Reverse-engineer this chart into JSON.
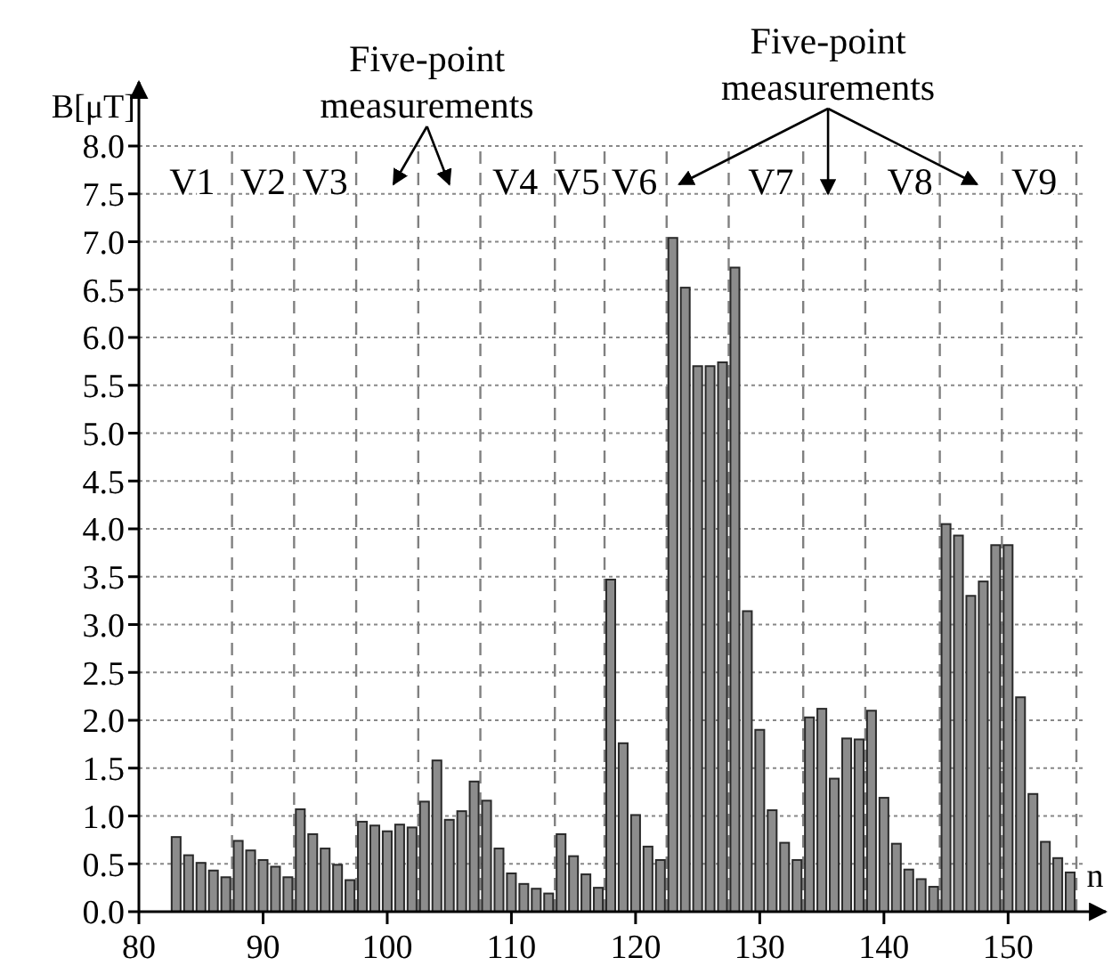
{
  "chart_data": {
    "type": "bar",
    "xlabel": "n",
    "ylabel": "B[μT]",
    "x": [
      83,
      84,
      85,
      86,
      87,
      88,
      89,
      90,
      91,
      92,
      93,
      94,
      95,
      96,
      97,
      98,
      99,
      100,
      101,
      102,
      103,
      104,
      105,
      106,
      107,
      108,
      109,
      110,
      111,
      112,
      113,
      114,
      115,
      116,
      117,
      118,
      119,
      120,
      121,
      122,
      123,
      124,
      125,
      126,
      127,
      128,
      129,
      130,
      131,
      132,
      133,
      134,
      135,
      136,
      137,
      138,
      139,
      140,
      141,
      142,
      143,
      144,
      145,
      146,
      147,
      148,
      149,
      150,
      151,
      152,
      153,
      154,
      155
    ],
    "values": [
      0.78,
      0.59,
      0.51,
      0.43,
      0.36,
      0.74,
      0.64,
      0.54,
      0.47,
      0.36,
      1.07,
      0.81,
      0.66,
      0.49,
      0.33,
      0.94,
      0.9,
      0.84,
      0.91,
      0.88,
      1.15,
      1.58,
      0.96,
      1.05,
      1.36,
      1.16,
      0.66,
      0.4,
      0.29,
      0.24,
      0.19,
      0.81,
      0.58,
      0.39,
      0.25,
      3.47,
      1.76,
      1.01,
      0.68,
      0.54,
      7.04,
      6.52,
      5.7,
      5.7,
      5.74,
      6.73,
      3.14,
      1.9,
      1.06,
      0.72,
      0.54,
      2.03,
      2.12,
      1.39,
      1.81,
      1.8,
      2.1,
      1.19,
      0.71,
      0.44,
      0.34,
      0.26,
      4.05,
      3.93,
      3.3,
      3.45,
      3.83,
      3.83,
      2.24,
      1.23,
      0.73,
      0.56,
      0.41
    ],
    "color": "#8c8c8c",
    "xlim": [
      80,
      156
    ],
    "xticks": [
      80,
      90,
      100,
      110,
      120,
      130,
      140,
      150
    ],
    "ylim": [
      0,
      8
    ],
    "yticks": [
      {
        "value": 0,
        "label": "0.0"
      },
      {
        "value": 0.5,
        "label": "0.5"
      },
      {
        "value": 1,
        "label": "1.0"
      },
      {
        "value": 1.5,
        "label": "1.5"
      },
      {
        "value": 2,
        "label": "2.0"
      },
      {
        "value": 2.5,
        "label": "2.5"
      },
      {
        "value": 3,
        "label": "3.0"
      },
      {
        "value": 3.5,
        "label": "3.5"
      },
      {
        "value": 4,
        "label": "4.0"
      },
      {
        "value": 4.5,
        "label": "4.5"
      },
      {
        "value": 5,
        "label": "5.0"
      },
      {
        "value": 5.5,
        "label": "5.5"
      },
      {
        "value": 6,
        "label": "6.0"
      },
      {
        "value": 6.5,
        "label": "6.5"
      },
      {
        "value": 7,
        "label": "7.0"
      },
      {
        "value": 7.5,
        "label": "7.5"
      },
      {
        "value": 8,
        "label": "8.0"
      }
    ],
    "grid": "y",
    "ref_lines": [
      {
        "axis": "x",
        "value": 87.5,
        "line_style": "dashed",
        "color": "#808080"
      },
      {
        "axis": "x",
        "value": 92.5,
        "line_style": "dashed",
        "color": "#808080"
      },
      {
        "axis": "x",
        "value": 97.5,
        "line_style": "dashed",
        "color": "#808080"
      },
      {
        "axis": "x",
        "value": 102.5,
        "line_style": "dashed",
        "color": "#808080"
      },
      {
        "axis": "x",
        "value": 107.5,
        "line_style": "dashed",
        "color": "#808080"
      },
      {
        "axis": "x",
        "value": 113.5,
        "line_style": "dashed",
        "color": "#808080"
      },
      {
        "axis": "x",
        "value": 117.5,
        "line_style": "dashed",
        "color": "#808080"
      },
      {
        "axis": "x",
        "value": 122.5,
        "line_style": "dashed",
        "color": "#808080"
      },
      {
        "axis": "x",
        "value": 127.5,
        "line_style": "dashed",
        "color": "#808080"
      },
      {
        "axis": "x",
        "value": 133.5,
        "line_style": "dashed",
        "color": "#808080"
      },
      {
        "axis": "x",
        "value": 138.5,
        "line_style": "dashed",
        "color": "#808080"
      },
      {
        "axis": "x",
        "value": 144.5,
        "line_style": "dashed",
        "color": "#808080"
      },
      {
        "axis": "x",
        "value": 149.5,
        "line_style": "dashed",
        "color": "#808080"
      },
      {
        "axis": "x",
        "value": 155.5,
        "line_style": "dashed",
        "color": "#808080"
      }
    ],
    "annotations": [
      "V1",
      "V2",
      "V3",
      "V4",
      "V5",
      "V6",
      "V7",
      "V8",
      "V9",
      "Five-point measurements",
      "Five-point measurements"
    ]
  }
}
